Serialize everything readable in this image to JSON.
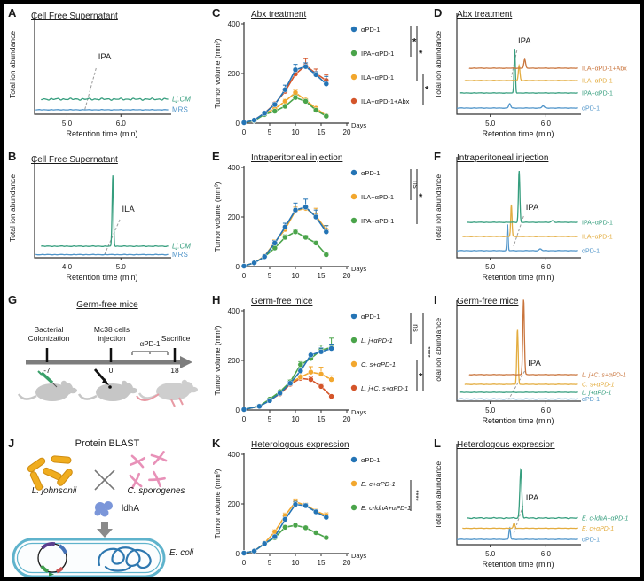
{
  "figure": {
    "background": "#ffffff",
    "border_color": "#000000"
  },
  "colors": {
    "plot_blue": "#2474b5",
    "plot_green": "#4aa44a",
    "plot_orange": "#f2a72e",
    "plot_red": "#d4552a",
    "chrom_teal": "#369e7e",
    "chrom_blue": "#4f94c9",
    "chrom_gold": "#e3ac3f",
    "chrom_brown": "#c9753d",
    "mouse_gray": "#c6c6c6",
    "bacteria_yellow": "#f0ad1f",
    "spore_pink": "#e891b8",
    "protein_blue": "#7b96d9"
  },
  "panels": {
    "A": {
      "label": "A",
      "title": "Cell Free Supernatant"
    },
    "B": {
      "label": "B",
      "title": "Cell Free Supernatant"
    },
    "C": {
      "label": "C",
      "title": "Abx treatment"
    },
    "D": {
      "label": "D",
      "title": "Abx treatment"
    },
    "E": {
      "label": "E",
      "title": "Intraperitoneal injection"
    },
    "F": {
      "label": "F",
      "title": "Intraperitoneal injection"
    },
    "G": {
      "label": "G",
      "title": "Germ-free mice",
      "event1_line1": "Bacterial",
      "event1_line2": "Colonization",
      "event2_line1": "Mc38 cells",
      "event2_line2": "injection",
      "event3": "Sacrifice",
      "treatment": "αPD-1",
      "tick1": "-7",
      "tick2": "0",
      "tick3": "18"
    },
    "H": {
      "label": "H",
      "title": "Germ-free mice"
    },
    "I": {
      "label": "I",
      "title": "Germ-free mice"
    },
    "J": {
      "label": "J",
      "title": "Protein BLAST",
      "organism_left": "L. johnsonii",
      "organism_right": "C. sporogenes",
      "protein": "ldhA",
      "host": "E. coli"
    },
    "K": {
      "label": "K",
      "title": "Heterologous expression"
    },
    "L": {
      "label": "L",
      "title": "Heterologous expression"
    }
  },
  "chart_data": [
    {
      "panel": "A",
      "type": "chromatogram",
      "title": "Cell Free Supernatant",
      "xlabel": "Retention time (min)",
      "ylabel": "Total ion abundance",
      "xlim": [
        4.4,
        6.9
      ],
      "xticks": [
        "5.0",
        "6.0"
      ],
      "annotation": {
        "text": "IPA",
        "label_x": 5.58,
        "label_y": 0.62,
        "line": [
          [
            5.54,
            0.52
          ],
          [
            5.33,
            0.05
          ]
        ]
      },
      "traces": [
        {
          "label": "Lj.CM",
          "italic": true,
          "color": "#369e7e",
          "offset": 0.17,
          "noise": 0.012,
          "start": 4.52,
          "peaks": []
        },
        {
          "label": "MRS",
          "color": "#4f94c9",
          "offset": 0.05,
          "noise": 0.003,
          "start": 4.42,
          "peaks": []
        }
      ]
    },
    {
      "panel": "B",
      "type": "chromatogram",
      "title": "Cell Free Supernatant",
      "xlabel": "Retention time (min)",
      "ylabel": "Total ion abundance",
      "xlim": [
        3.4,
        5.9
      ],
      "xticks": [
        "4.0",
        "5.0"
      ],
      "annotation": {
        "text": "ILA",
        "label_x": 5.02,
        "label_y": 0.52,
        "line": [
          [
            4.98,
            0.43
          ],
          [
            4.7,
            0.04
          ]
        ]
      },
      "traces": [
        {
          "label": "Lj.CM",
          "italic": true,
          "color": "#369e7e",
          "offset": 0.13,
          "noise": 0.004,
          "start": 3.52,
          "peaks": [
            {
              "c": 4.85,
              "h": 0.8,
              "w": 0.018
            }
          ]
        },
        {
          "label": "MRS",
          "color": "#4f94c9",
          "offset": 0.035,
          "noise": 0.003,
          "start": 3.42,
          "peaks": []
        }
      ]
    },
    {
      "panel": "C",
      "type": "line",
      "title": "Abx treatment",
      "xlabel": "Days",
      "ylabel": "Tumor volume (mm³)",
      "xlim": [
        0,
        20
      ],
      "ylim": [
        0,
        400
      ],
      "xticks": [
        0,
        5,
        10,
        15,
        20
      ],
      "yticks": [
        0,
        200,
        400
      ],
      "x": [
        0,
        2,
        4,
        6,
        8,
        10,
        12,
        14,
        16
      ],
      "series": [
        {
          "name": "αPD-1",
          "color": "#2474b5",
          "values": [
            2,
            12,
            40,
            75,
            135,
            215,
            228,
            195,
            158
          ],
          "err": [
            0,
            0,
            0,
            8,
            18,
            22,
            15,
            12,
            30
          ]
        },
        {
          "name": "IPA+αPD-1",
          "color": "#4aa44a",
          "values": [
            2,
            10,
            35,
            48,
            68,
            103,
            88,
            52,
            28
          ],
          "err": [
            0,
            0,
            0,
            0,
            6,
            10,
            8,
            6,
            5
          ]
        },
        {
          "name": "ILA+αPD-1",
          "color": "#f2a72e",
          "values": [
            2,
            10,
            38,
            58,
            88,
            123,
            93,
            60,
            30
          ],
          "err": [
            0,
            0,
            0,
            6,
            8,
            10,
            6,
            6,
            6
          ]
        },
        {
          "name": "ILA+αPD-1+Abx",
          "color": "#d4552a",
          "values": [
            2,
            12,
            40,
            78,
            128,
            198,
            232,
            200,
            172
          ],
          "err": [
            0,
            0,
            0,
            6,
            12,
            15,
            28,
            18,
            22
          ]
        }
      ],
      "sig": [
        {
          "from": 0,
          "to": 1,
          "label": "*"
        },
        {
          "from": 0,
          "to": 2,
          "label": "*"
        },
        {
          "from": 2,
          "to": 3,
          "label": "*"
        }
      ]
    },
    {
      "panel": "D",
      "type": "chromatogram",
      "title": "Abx treatment",
      "xlabel": "Retention time (min)",
      "ylabel": "Total ion abundance",
      "xlim": [
        4.4,
        6.6
      ],
      "xticks": [
        "5.0",
        "6.0"
      ],
      "annotation": {
        "text": "IPA",
        "label_x": 5.5,
        "label_y": 0.8,
        "line": [
          [
            5.48,
            0.72
          ],
          [
            5.38,
            0.42
          ]
        ]
      },
      "traces": [
        {
          "label": "ILA+αPD-1+Abx",
          "color": "#c9753d",
          "offset": 0.52,
          "start": 4.62,
          "peaks": [
            {
              "c": 5.62,
              "h": 0.1,
              "w": 0.022
            }
          ]
        },
        {
          "label": "ILA+αPD-1",
          "color": "#e3ac3f",
          "offset": 0.38,
          "start": 4.54,
          "peaks": [
            {
              "c": 5.52,
              "h": 0.17,
              "w": 0.02
            }
          ]
        },
        {
          "label": "IPA+αPD-1",
          "color": "#369e7e",
          "offset": 0.24,
          "start": 4.46,
          "peaks": [
            {
              "c": 5.44,
              "h": 0.5,
              "w": 0.016
            }
          ]
        },
        {
          "label": "αPD-1",
          "color": "#4f94c9",
          "offset": 0.07,
          "start": 4.4,
          "peaks": [
            {
              "c": 5.35,
              "h": 0.05,
              "w": 0.025
            },
            {
              "c": 5.95,
              "h": 0.025,
              "w": 0.03
            }
          ]
        }
      ]
    },
    {
      "panel": "E",
      "type": "line",
      "title": "Intraperitoneal injection",
      "xlabel": "Days",
      "ylabel": "Tumor volume (mm³)",
      "xlim": [
        0,
        20
      ],
      "ylim": [
        0,
        400
      ],
      "xticks": [
        0,
        5,
        10,
        15,
        20
      ],
      "yticks": [
        0,
        200,
        400
      ],
      "x": [
        0,
        2,
        4,
        6,
        8,
        10,
        12,
        14,
        16
      ],
      "series": [
        {
          "name": "αPD-1",
          "color": "#2474b5",
          "values": [
            2,
            15,
            40,
            95,
            160,
            228,
            240,
            200,
            140
          ],
          "err": [
            0,
            0,
            5,
            10,
            15,
            28,
            32,
            28,
            25
          ]
        },
        {
          "name": "ILA+αPD-1",
          "color": "#f2a72e",
          "values": [
            2,
            15,
            42,
            98,
            150,
            225,
            235,
            205,
            148
          ],
          "err": [
            0,
            0,
            5,
            10,
            12,
            15,
            12,
            30,
            18
          ]
        },
        {
          "name": "IPA+αPD-1",
          "color": "#4aa44a",
          "values": [
            2,
            15,
            40,
            75,
            118,
            140,
            118,
            95,
            48
          ],
          "err": [
            0,
            0,
            4,
            6,
            10,
            10,
            8,
            8,
            8
          ]
        }
      ],
      "sig": [
        {
          "from": 0,
          "to": 1,
          "label": "ns"
        },
        {
          "from": 0,
          "to": 2,
          "label": "*"
        }
      ]
    },
    {
      "panel": "F",
      "type": "chromatogram",
      "title": "Intraperitoneal injection",
      "xlabel": "Retention time (min)",
      "ylabel": "Total ion abundance",
      "xlim": [
        4.4,
        6.6
      ],
      "xticks": [
        "5.0",
        "6.0"
      ],
      "annotation": {
        "text": "IPA",
        "label_x": 5.64,
        "label_y": 0.54,
        "line": [
          [
            5.6,
            0.47
          ],
          [
            5.42,
            0.13
          ]
        ]
      },
      "traces": [
        {
          "label": "IPA+αPD-1",
          "color": "#369e7e",
          "offset": 0.4,
          "start": 4.58,
          "peaks": [
            {
              "c": 5.52,
              "h": 0.58,
              "w": 0.018
            },
            {
              "c": 6.12,
              "h": 0.02,
              "w": 0.03
            }
          ]
        },
        {
          "label": "ILA+αPD-1",
          "color": "#e3ac3f",
          "offset": 0.24,
          "start": 4.5,
          "peaks": [
            {
              "c": 5.38,
              "h": 0.36,
              "w": 0.016
            }
          ]
        },
        {
          "label": "αPD-1",
          "color": "#4f94c9",
          "offset": 0.08,
          "start": 4.4,
          "peaks": [
            {
              "c": 5.31,
              "h": 0.3,
              "w": 0.015
            },
            {
              "c": 5.9,
              "h": 0.02,
              "w": 0.03
            }
          ]
        }
      ]
    },
    {
      "panel": "H",
      "type": "line",
      "title": "Germ-free mice",
      "xlabel": "Days",
      "ylabel": "Tumor volume (mm³)",
      "xlim": [
        0,
        20
      ],
      "ylim": [
        0,
        400
      ],
      "xticks": [
        0,
        5,
        10,
        15,
        20
      ],
      "yticks": [
        0,
        200,
        400
      ],
      "x": [
        0,
        3,
        5,
        7,
        9,
        11,
        13,
        15,
        17
      ],
      "series": [
        {
          "name": "αPD-1",
          "color": "#2474b5",
          "values": [
            2,
            15,
            38,
            68,
            108,
            158,
            222,
            235,
            248
          ],
          "err": [
            0,
            2,
            4,
            6,
            8,
            10,
            12,
            15,
            18
          ]
        },
        {
          "name": "L. j+αPD-1",
          "italic": true,
          "color": "#4aa44a",
          "values": [
            2,
            16,
            44,
            74,
            114,
            183,
            208,
            242,
            252
          ],
          "err": [
            0,
            2,
            4,
            6,
            8,
            12,
            15,
            20,
            38
          ]
        },
        {
          "name": "C. s+αPD-1",
          "italic": true,
          "color": "#f2a72e",
          "values": [
            2,
            15,
            40,
            70,
            110,
            133,
            153,
            145,
            123
          ],
          "err": [
            0,
            2,
            4,
            6,
            8,
            18,
            22,
            28,
            15
          ]
        },
        {
          "name": "L. j+C. s+αPD-1",
          "italic": true,
          "color": "#d4552a",
          "values": [
            2,
            15,
            40,
            65,
            104,
            128,
            123,
            95,
            55
          ],
          "err": [
            0,
            2,
            4,
            5,
            8,
            10,
            10,
            8,
            6
          ]
        }
      ],
      "sig": [
        {
          "from": 0,
          "to": 1,
          "label": "ns"
        },
        {
          "from": 2,
          "to": 3,
          "label": "*"
        },
        {
          "from": 0,
          "to": 3,
          "label": "****"
        }
      ]
    },
    {
      "panel": "I",
      "type": "chromatogram",
      "title": "Germ-free mice",
      "xlabel": "Retention time (min)",
      "ylabel": "Total ion abundance",
      "xlim": [
        4.4,
        6.6
      ],
      "xticks": [
        "5.0",
        "6.0"
      ],
      "annotation": {
        "text": "IPA",
        "label_x": 5.68,
        "label_y": 0.4,
        "line": [
          [
            5.62,
            0.34
          ],
          [
            5.33,
            0.02
          ]
        ]
      },
      "traces": [
        {
          "label": "L. j+C. s+αPD-1",
          "italic": true,
          "color": "#c9753d",
          "offset": 0.3,
          "start": 4.62,
          "peaks": [
            {
              "c": 5.6,
              "h": 0.85,
              "w": 0.02
            }
          ]
        },
        {
          "label": "C. s+αPD-1",
          "italic": true,
          "color": "#e3ac3f",
          "offset": 0.19,
          "start": 4.54,
          "peaks": [
            {
              "c": 5.49,
              "h": 0.62,
              "w": 0.018
            }
          ]
        },
        {
          "label": "L. j+αPD-1",
          "italic": true,
          "color": "#369e7e",
          "offset": 0.1,
          "start": 4.46,
          "peaks": []
        },
        {
          "label": "αPD-1",
          "color": "#4f94c9",
          "offset": 0.025,
          "start": 4.4,
          "peaks": []
        }
      ]
    },
    {
      "panel": "K",
      "type": "line",
      "title": "Heterologous expression",
      "xlabel": "Days",
      "ylabel": "Tumor volume (mm³)",
      "xlim": [
        0,
        20
      ],
      "ylim": [
        0,
        400
      ],
      "xticks": [
        0,
        5,
        10,
        15,
        20
      ],
      "yticks": [
        0,
        200,
        400
      ],
      "x": [
        0,
        2,
        4,
        6,
        8,
        10,
        12,
        14,
        16
      ],
      "series": [
        {
          "name": "αPD-1",
          "color": "#2474b5",
          "values": [
            2,
            10,
            40,
            68,
            138,
            198,
            193,
            168,
            146
          ],
          "err": [
            0,
            0,
            3,
            5,
            8,
            12,
            8,
            8,
            8
          ]
        },
        {
          "name": "E. c+αPD-1",
          "italic": true,
          "color": "#f2a72e",
          "values": [
            2,
            10,
            42,
            88,
            153,
            208,
            195,
            171,
            154
          ],
          "err": [
            0,
            0,
            3,
            8,
            10,
            12,
            8,
            8,
            10
          ]
        },
        {
          "name": "E. c-ldhA+αPD-1",
          "italic": true,
          "color": "#4aa44a",
          "values": [
            2,
            10,
            40,
            64,
            106,
            114,
            104,
            84,
            64
          ],
          "err": [
            0,
            0,
            3,
            5,
            8,
            8,
            6,
            6,
            6
          ]
        }
      ],
      "sig": [
        {
          "from": 1,
          "to": 2,
          "label": "****"
        }
      ]
    },
    {
      "panel": "L",
      "type": "chromatogram",
      "title": "Heterologous expression",
      "xlabel": "Retention time (min)",
      "ylabel": "Total ion abundance",
      "xlim": [
        4.4,
        6.6
      ],
      "xticks": [
        "5.0",
        "6.0"
      ],
      "annotation": {
        "text": "IPA",
        "label_x": 5.64,
        "label_y": 0.5,
        "line": [
          [
            5.59,
            0.44
          ],
          [
            5.42,
            0.12
          ]
        ]
      },
      "traces": [
        {
          "label": "E. c-ldhA+αPD-1",
          "italic": true,
          "color": "#369e7e",
          "offset": 0.3,
          "noise": 0.006,
          "start": 4.58,
          "peaks": [
            {
              "c": 5.55,
              "h": 0.55,
              "w": 0.025
            }
          ]
        },
        {
          "label": "E. c+αPD-1",
          "italic": true,
          "color": "#e3ac3f",
          "offset": 0.185,
          "start": 4.5,
          "peaks": [
            {
              "c": 5.43,
              "h": 0.06,
              "w": 0.02
            }
          ]
        },
        {
          "label": "αPD-1",
          "color": "#4f94c9",
          "offset": 0.06,
          "start": 4.4,
          "peaks": [
            {
              "c": 5.35,
              "h": 0.13,
              "w": 0.018
            }
          ]
        }
      ]
    }
  ]
}
